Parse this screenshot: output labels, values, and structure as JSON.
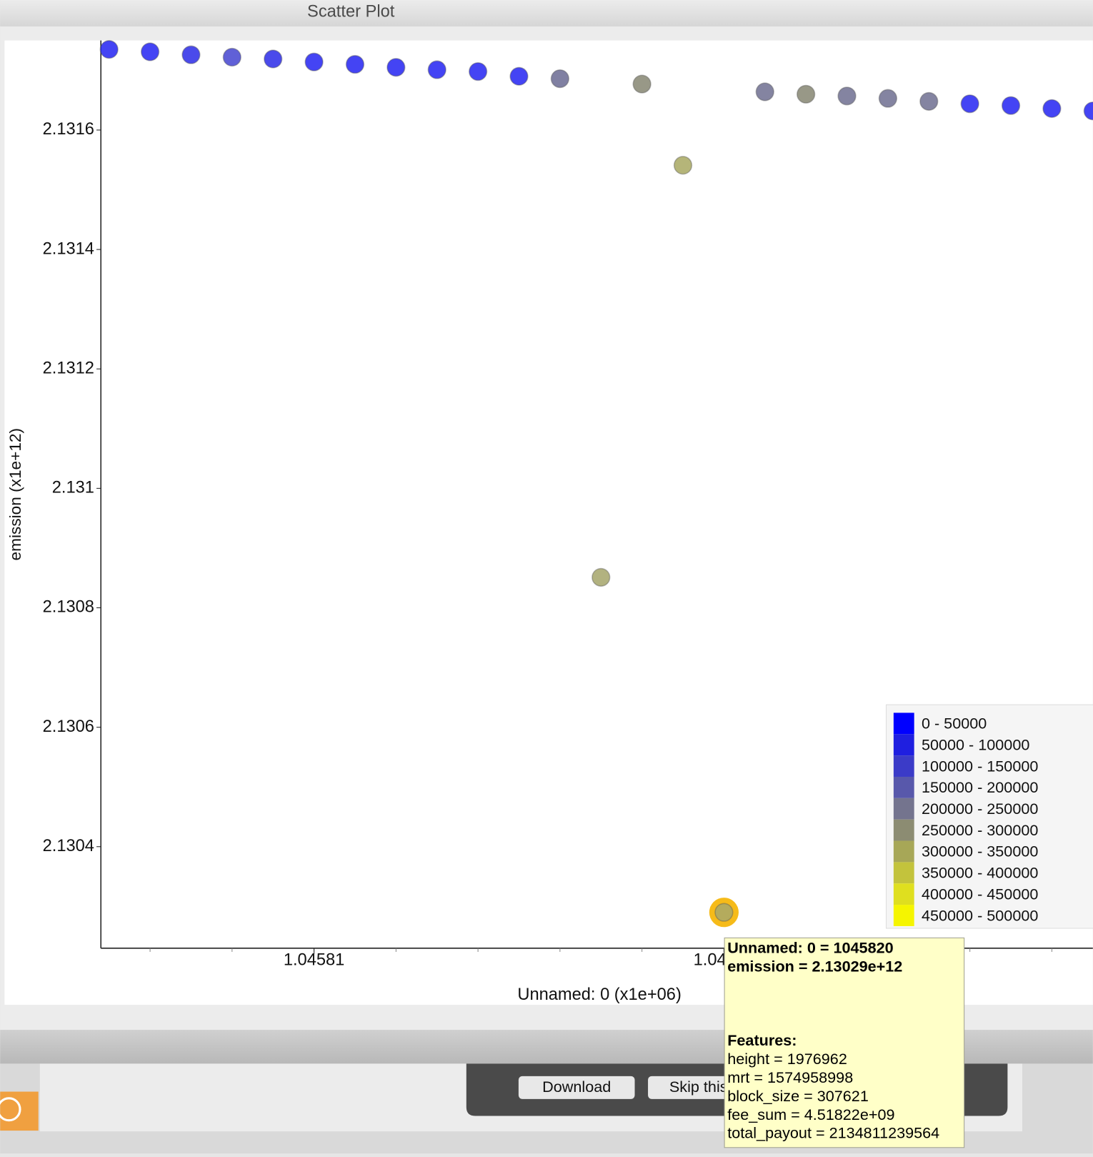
{
  "window": {
    "title": "Scatter Plot"
  },
  "chart_data": {
    "type": "scatter",
    "x_label": "Unnamed: 0 (x1e+06)",
    "y_label": "emission (x1e+12)",
    "xlim": [
      1.0458048,
      1.045829
    ],
    "ylim": [
      2.13023,
      2.13175
    ],
    "xticks": [
      1.04581,
      1.04582
    ],
    "yticks": [
      2.1304,
      2.1306,
      2.1308,
      2.131,
      2.1312,
      2.1314,
      2.1316
    ],
    "highlight_index": 15,
    "series": [
      {
        "x": [
          1.045805,
          1.045806,
          1.045807,
          1.045808,
          1.045809,
          1.04581,
          1.045811,
          1.045812,
          1.045813,
          1.045814,
          1.045815,
          1.045816,
          1.045817,
          1.045818,
          1.045819,
          1.04582,
          1.045821,
          1.045822,
          1.045823,
          1.045824,
          1.045825,
          1.045826,
          1.045827,
          1.045828,
          1.045829
        ],
        "values": [
          2.131735,
          2.131731,
          2.131726,
          2.131722,
          2.131719,
          2.131714,
          2.13171,
          2.131705,
          2.131701,
          2.131698,
          2.13169,
          2.131686,
          2.130851,
          2.131677,
          2.131541,
          2.13029,
          2.131664,
          2.13166,
          2.131657,
          2.131653,
          2.131648,
          2.131644,
          2.131641,
          2.131636,
          2.131632
        ],
        "colors": [
          "#2323f2",
          "#2323f2",
          "#2a2ae8",
          "#4444d0",
          "#2a2ae8",
          "#2323f2",
          "#2323f2",
          "#2323f2",
          "#2323f2",
          "#2323f2",
          "#2323f2",
          "#6a6a92",
          "#a4a46a",
          "#868672",
          "#a8a862",
          "#a8a86a",
          "#6e6e90",
          "#868672",
          "#6e6e90",
          "#6e6e90",
          "#6e6e90",
          "#2323f2",
          "#2323f2",
          "#2323f2",
          "#2323f2"
        ]
      }
    ],
    "legend": [
      {
        "label": "0 - 50000",
        "color": "#0000ff"
      },
      {
        "label": "50000 - 100000",
        "color": "#1f1fe0"
      },
      {
        "label": "100000 - 150000",
        "color": "#3b3bc8"
      },
      {
        "label": "150000 - 200000",
        "color": "#5858ab"
      },
      {
        "label": "200000 - 250000",
        "color": "#74748e"
      },
      {
        "label": "250000 - 300000",
        "color": "#8c8c72"
      },
      {
        "label": "300000 - 350000",
        "color": "#a7a757"
      },
      {
        "label": "350000 - 400000",
        "color": "#c3c33c"
      },
      {
        "label": "400000 - 450000",
        "color": "#dfdf1f"
      },
      {
        "label": "450000 - 500000",
        "color": "#f5f500"
      }
    ]
  },
  "tooltip": {
    "lines": [
      "Unnamed: 0 = 1045820",
      "emission = 2.13029e+12"
    ],
    "features_heading": "Features:",
    "features": [
      "height = 1976962",
      "mrt = 1574958998",
      "block_size = 307621",
      "fee_sum = 4.51822e+09",
      "total_payout = 2134811239564"
    ]
  },
  "buttons": [
    "Download",
    "Skip this"
  ]
}
